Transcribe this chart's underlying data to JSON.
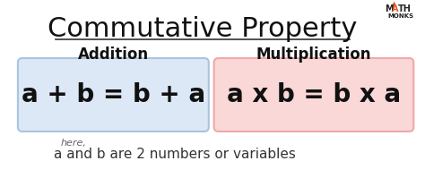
{
  "title": "Commutative Property",
  "title_fontsize": 22,
  "bg_color": "#ffffff",
  "addition_label": "Addition",
  "multiplication_label": "Multiplication",
  "addition_formula": "a + b = b + a",
  "multiplication_formula": "a x b = b x a",
  "addition_box_color": "#dce8f5",
  "addition_box_edge": "#aac4e0",
  "multiplication_box_color": "#fad8d8",
  "multiplication_box_edge": "#f0a8a8",
  "formula_fontsize": 20,
  "label_fontsize": 12,
  "note_small": "here,",
  "note_main": "a and b are 2 numbers or variables",
  "note_fontsize": 11,
  "note_small_fontsize": 8,
  "mathmonks_logo_color": "#e05a20",
  "mathmonks_sub": "MONKS"
}
